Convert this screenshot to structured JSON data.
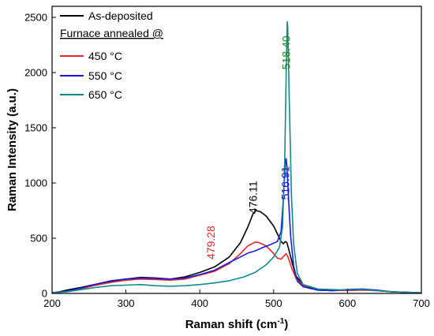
{
  "chart_data": {
    "type": "line",
    "xlabel": "Raman shift (cm",
    "xlabel_sup": "-1",
    "xlabel_end": ")",
    "ylabel": "Raman Intensity (a.u.)",
    "xlim": [
      200,
      700
    ],
    "ylim": [
      0,
      2600
    ],
    "xticks": [
      200,
      300,
      400,
      500,
      600,
      700
    ],
    "yticks": [
      0,
      500,
      1000,
      1500,
      2000,
      2500
    ],
    "grid": false,
    "legend_position": "top-left",
    "legend_heading": "Furnace annealed @",
    "series": [
      {
        "name": "As-deposited",
        "color": "#000000",
        "points": [
          [
            200,
            5
          ],
          [
            210,
            15
          ],
          [
            220,
            30
          ],
          [
            240,
            55
          ],
          [
            260,
            85
          ],
          [
            280,
            110
          ],
          [
            300,
            130
          ],
          [
            320,
            145
          ],
          [
            340,
            140
          ],
          [
            360,
            130
          ],
          [
            380,
            150
          ],
          [
            400,
            190
          ],
          [
            420,
            240
          ],
          [
            440,
            330
          ],
          [
            455,
            460
          ],
          [
            465,
            600
          ],
          [
            472,
            720
          ],
          [
            476,
            750
          ],
          [
            482,
            740
          ],
          [
            490,
            700
          ],
          [
            500,
            610
          ],
          [
            505,
            540
          ],
          [
            510,
            470
          ],
          [
            513,
            450
          ],
          [
            516,
            470
          ],
          [
            518,
            460
          ],
          [
            520,
            410
          ],
          [
            525,
            280
          ],
          [
            530,
            160
          ],
          [
            540,
            80
          ],
          [
            550,
            50
          ],
          [
            560,
            30
          ],
          [
            580,
            25
          ],
          [
            600,
            30
          ],
          [
            620,
            35
          ],
          [
            640,
            25
          ],
          [
            660,
            15
          ],
          [
            680,
            10
          ],
          [
            700,
            5
          ]
        ]
      },
      {
        "name": "450 °C",
        "color": "#e4262b",
        "points": [
          [
            200,
            5
          ],
          [
            220,
            20
          ],
          [
            240,
            45
          ],
          [
            260,
            75
          ],
          [
            280,
            100
          ],
          [
            300,
            120
          ],
          [
            320,
            130
          ],
          [
            340,
            125
          ],
          [
            360,
            120
          ],
          [
            380,
            130
          ],
          [
            400,
            165
          ],
          [
            420,
            200
          ],
          [
            440,
            270
          ],
          [
            455,
            360
          ],
          [
            465,
            430
          ],
          [
            475,
            465
          ],
          [
            480,
            460
          ],
          [
            490,
            430
          ],
          [
            500,
            360
          ],
          [
            505,
            320
          ],
          [
            510,
            310
          ],
          [
            514,
            340
          ],
          [
            517,
            360
          ],
          [
            520,
            320
          ],
          [
            525,
            220
          ],
          [
            530,
            140
          ],
          [
            540,
            70
          ],
          [
            550,
            45
          ],
          [
            570,
            30
          ],
          [
            600,
            25
          ],
          [
            620,
            30
          ],
          [
            640,
            25
          ],
          [
            660,
            15
          ],
          [
            700,
            5
          ]
        ]
      },
      {
        "name": "550 °C",
        "color": "#1a1adf",
        "points": [
          [
            200,
            5
          ],
          [
            220,
            20
          ],
          [
            240,
            50
          ],
          [
            260,
            85
          ],
          [
            280,
            115
          ],
          [
            300,
            130
          ],
          [
            320,
            140
          ],
          [
            340,
            135
          ],
          [
            360,
            130
          ],
          [
            380,
            140
          ],
          [
            400,
            170
          ],
          [
            420,
            210
          ],
          [
            440,
            280
          ],
          [
            455,
            330
          ],
          [
            465,
            365
          ],
          [
            475,
            385
          ],
          [
            485,
            415
          ],
          [
            495,
            440
          ],
          [
            505,
            470
          ],
          [
            510,
            560
          ],
          [
            513,
            850
          ],
          [
            516,
            1200
          ],
          [
            517,
            1220
          ],
          [
            518,
            1150
          ],
          [
            520,
            880
          ],
          [
            523,
            520
          ],
          [
            527,
            250
          ],
          [
            532,
            110
          ],
          [
            540,
            60
          ],
          [
            560,
            30
          ],
          [
            580,
            25
          ],
          [
            600,
            35
          ],
          [
            620,
            40
          ],
          [
            640,
            30
          ],
          [
            660,
            15
          ],
          [
            700,
            5
          ]
        ]
      },
      {
        "name": "650 °C",
        "color": "#128a8a",
        "points": [
          [
            200,
            5
          ],
          [
            220,
            15
          ],
          [
            240,
            35
          ],
          [
            260,
            55
          ],
          [
            280,
            70
          ],
          [
            300,
            75
          ],
          [
            320,
            80
          ],
          [
            340,
            70
          ],
          [
            360,
            65
          ],
          [
            380,
            70
          ],
          [
            400,
            80
          ],
          [
            420,
            95
          ],
          [
            440,
            115
          ],
          [
            460,
            150
          ],
          [
            475,
            190
          ],
          [
            490,
            260
          ],
          [
            500,
            330
          ],
          [
            508,
            420
          ],
          [
            512,
            600
          ],
          [
            515,
            1200
          ],
          [
            517,
            2000
          ],
          [
            518.4,
            2460
          ],
          [
            519,
            2420
          ],
          [
            520,
            2100
          ],
          [
            522,
            1500
          ],
          [
            524,
            900
          ],
          [
            527,
            450
          ],
          [
            532,
            180
          ],
          [
            540,
            80
          ],
          [
            560,
            40
          ],
          [
            600,
            30
          ],
          [
            620,
            35
          ],
          [
            640,
            25
          ],
          [
            660,
            15
          ],
          [
            700,
            5
          ]
        ]
      }
    ],
    "annotations": [
      {
        "text": "518.40",
        "x": 522,
        "y": 2180,
        "color": "#1a8a1a",
        "rotate": -90
      },
      {
        "text": "516.91",
        "x": 521,
        "y": 1000,
        "color": "#1a1adf",
        "rotate": -90
      },
      {
        "text": "476.11",
        "x": 477,
        "y": 870,
        "color": "#000000",
        "rotate": -90
      },
      {
        "text": "479.28",
        "x": 420,
        "y": 460,
        "color": "#e4262b",
        "rotate": -90
      }
    ]
  }
}
